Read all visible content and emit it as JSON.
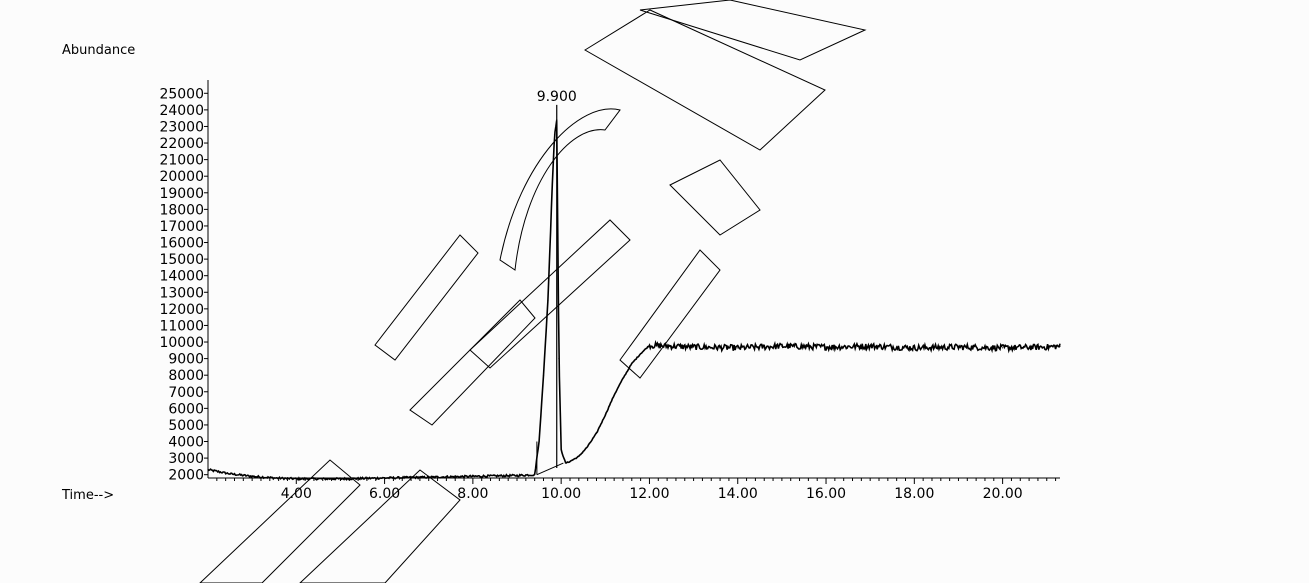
{
  "chart_data": {
    "type": "line",
    "title": "",
    "ylabel": "Abundance",
    "xlabel": "Time-->",
    "xlim": [
      2.0,
      21.3
    ],
    "ylim": [
      1800,
      25500
    ],
    "x_ticks": [
      "4.00",
      "6.00",
      "8.00",
      "10.00",
      "12.00",
      "14.00",
      "16.00",
      "18.00",
      "20.00"
    ],
    "y_ticks": [
      "2000",
      "3000",
      "4000",
      "5000",
      "6000",
      "7000",
      "8000",
      "9000",
      "10000",
      "11000",
      "12000",
      "13000",
      "14000",
      "15000",
      "16000",
      "17000",
      "18000",
      "19000",
      "20000",
      "21000",
      "22000",
      "23000",
      "24000",
      "25000"
    ],
    "peak_annotation": {
      "label": "9.900",
      "x": 9.9,
      "y": 24300
    },
    "series": [
      {
        "x": [
          2.0,
          2.5,
          3.0,
          3.5,
          4.0,
          5.0,
          6.0,
          7.0,
          8.0,
          9.0,
          9.4,
          9.5,
          9.6,
          9.7,
          9.75,
          9.8,
          9.85,
          9.9,
          9.95,
          10.0,
          10.1,
          10.2,
          10.4,
          10.6,
          10.8,
          11.0,
          11.2,
          11.4,
          11.6,
          11.8,
          12.0,
          12.5,
          13.0,
          14.0,
          15.0,
          16.0,
          17.0,
          18.0,
          19.0,
          20.0,
          21.0,
          21.3
        ],
        "y": [
          2300,
          2050,
          1900,
          1800,
          1750,
          1750,
          1800,
          1850,
          1900,
          1950,
          2000,
          4000,
          8000,
          12500,
          16000,
          19500,
          22500,
          23400,
          9000,
          3500,
          2700,
          2800,
          3100,
          3700,
          4500,
          5600,
          6800,
          7800,
          8700,
          9300,
          9800,
          9750,
          9700,
          9650,
          9750,
          9700,
          9750,
          9650,
          9700,
          9650,
          9700,
          9750
        ]
      }
    ]
  }
}
